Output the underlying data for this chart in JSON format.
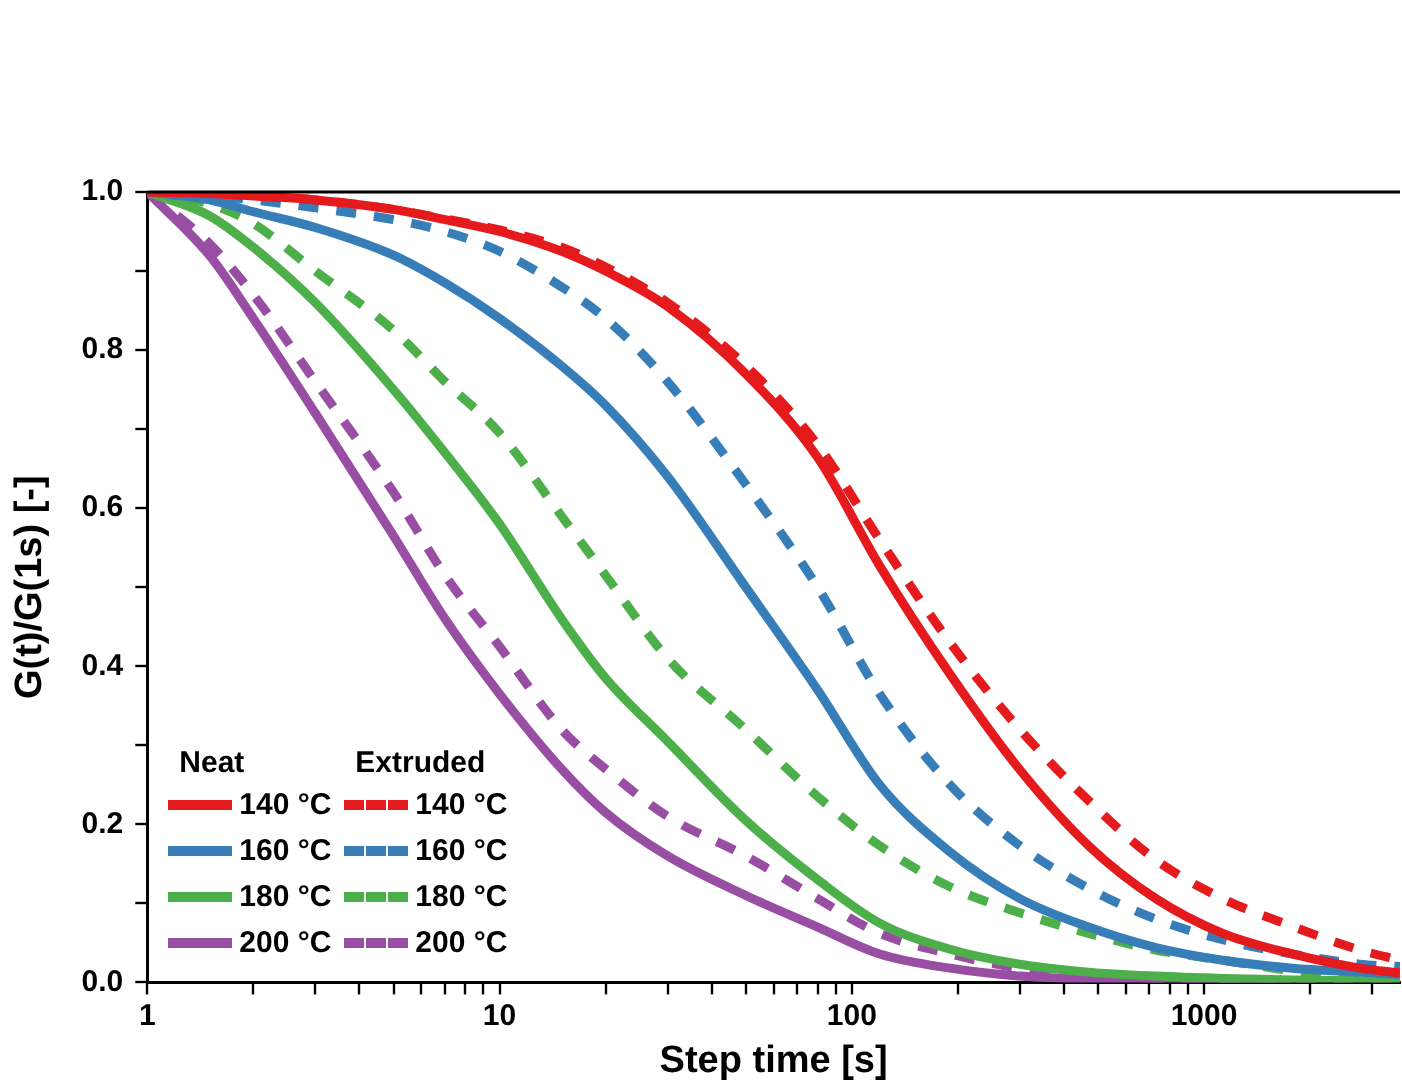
{
  "chart_data": {
    "type": "line",
    "xlabel": "Step time [s]",
    "ylabel": "G(t)/G(1s) [-]",
    "annotations": [
      "Neat",
      "Extruded"
    ],
    "log": "x",
    "grid": false,
    "legend": "bottom left",
    "marker": "none",
    "xlim": [
      1,
      3600
    ],
    "xticks": [
      1,
      {
        "value": 2,
        "label": null
      },
      {
        "value": 3,
        "label": null
      },
      {
        "value": 4,
        "label": null
      },
      {
        "value": 5,
        "label": null
      },
      {
        "value": 6,
        "label": null
      },
      {
        "value": 7,
        "label": null
      },
      {
        "value": 8,
        "label": null
      },
      {
        "value": 9,
        "label": null
      },
      10,
      {
        "value": 20,
        "label": null
      },
      {
        "value": 30,
        "label": null
      },
      {
        "value": 40,
        "label": null
      },
      {
        "value": 50,
        "label": null
      },
      {
        "value": 60,
        "label": null
      },
      {
        "value": 70,
        "label": null
      },
      {
        "value": 80,
        "label": null
      },
      {
        "value": 90,
        "label": null
      },
      100,
      {
        "value": 200,
        "label": null
      },
      {
        "value": 300,
        "label": null
      },
      {
        "value": 400,
        "label": null
      },
      {
        "value": 500,
        "label": null
      },
      {
        "value": 600,
        "label": null
      },
      {
        "value": 700,
        "label": null
      },
      {
        "value": 800,
        "label": null
      },
      {
        "value": 900,
        "label": null
      },
      1000,
      {
        "value": 2000,
        "label": null
      },
      {
        "value": 3000,
        "label": null
      }
    ],
    "ylim": [
      0,
      1
    ],
    "yticks": [
      {
        "value": 0,
        "label": "0.0"
      },
      {
        "value": 0.1,
        "label": null
      },
      {
        "value": 0.2,
        "label": "0.2"
      },
      {
        "value": 0.3,
        "label": null
      },
      {
        "value": 0.4,
        "label": "0.4"
      },
      {
        "value": 0.5,
        "label": null
      },
      {
        "value": 0.6,
        "label": "0.6"
      },
      {
        "value": 0.7,
        "label": null
      },
      {
        "value": 0.8,
        "label": "0.8"
      },
      {
        "value": 0.9,
        "label": null
      },
      {
        "value": 1,
        "label": "1.0"
      }
    ],
    "x": [
      1,
      1.5,
      2,
      3,
      5,
      7,
      10,
      15,
      20,
      30,
      50,
      80,
      120,
      190,
      300,
      470,
      730,
      1130,
      1780,
      2770,
      3600
    ],
    "series": [
      {
        "name": "140 °C",
        "color": "#e41a1c",
        "line_style": "solid",
        "values": [
          1,
          0.998,
          0.995,
          0.99,
          0.978,
          0.965,
          0.95,
          0.925,
          0.9,
          0.855,
          0.77,
          0.664,
          0.527,
          0.39,
          0.269,
          0.173,
          0.106,
          0.062,
          0.036,
          0.018,
          0.012
        ]
      },
      {
        "name": "160 °C",
        "color": "#377eb8",
        "line_style": "solid",
        "values": [
          1,
          0.99,
          0.975,
          0.955,
          0.92,
          0.885,
          0.84,
          0.78,
          0.73,
          0.64,
          0.5,
          0.37,
          0.25,
          0.165,
          0.106,
          0.07,
          0.044,
          0.028,
          0.018,
          0.013,
          0.01
        ]
      },
      {
        "name": "180 °C",
        "color": "#4daf4a",
        "line_style": "solid",
        "values": [
          1,
          0.97,
          0.93,
          0.86,
          0.75,
          0.67,
          0.58,
          0.46,
          0.385,
          0.305,
          0.205,
          0.13,
          0.075,
          0.042,
          0.023,
          0.013,
          0.008,
          0.005,
          0.003,
          0.002,
          0.001
        ]
      },
      {
        "name": "200 °C",
        "color": "#984ea3",
        "line_style": "solid",
        "values": [
          1,
          0.92,
          0.84,
          0.72,
          0.565,
          0.46,
          0.365,
          0.27,
          0.215,
          0.16,
          0.11,
          0.07,
          0.036,
          0.018,
          0.008,
          0.004,
          0.002,
          0.001,
          0,
          null,
          null
        ]
      },
      {
        "name": "140 °C",
        "color": "#e41a1c",
        "line_style": "dashed",
        "values": [
          1,
          0.998,
          0.995,
          0.99,
          0.978,
          0.966,
          0.952,
          0.93,
          0.905,
          0.86,
          0.78,
          0.68,
          0.56,
          0.43,
          0.32,
          0.23,
          0.155,
          0.106,
          0.071,
          0.041,
          0.028
        ]
      },
      {
        "name": "160 °C",
        "color": "#377eb8",
        "line_style": "dashed",
        "values": [
          1,
          0.995,
          0.99,
          0.98,
          0.965,
          0.95,
          0.925,
          0.88,
          0.84,
          0.76,
          0.63,
          0.5,
          0.365,
          0.25,
          0.173,
          0.119,
          0.08,
          0.054,
          0.036,
          0.023,
          0.02
        ]
      },
      {
        "name": "180 °C",
        "color": "#4daf4a",
        "line_style": "dashed",
        "values": [
          1,
          0.985,
          0.96,
          0.9,
          0.825,
          0.76,
          0.695,
          0.59,
          0.515,
          0.41,
          0.32,
          0.235,
          0.173,
          0.121,
          0.088,
          0.062,
          0.041,
          0.028,
          0.015,
          0.008,
          0.006
        ]
      },
      {
        "name": "200 °C",
        "color": "#984ea3",
        "line_style": "dashed",
        "values": [
          1,
          0.935,
          0.87,
          0.76,
          0.62,
          0.515,
          0.425,
          0.32,
          0.27,
          0.21,
          0.16,
          0.106,
          0.062,
          0.036,
          0.018,
          0.01,
          0.005,
          0.003,
          0.002,
          0.001,
          0.001
        ]
      }
    ]
  }
}
